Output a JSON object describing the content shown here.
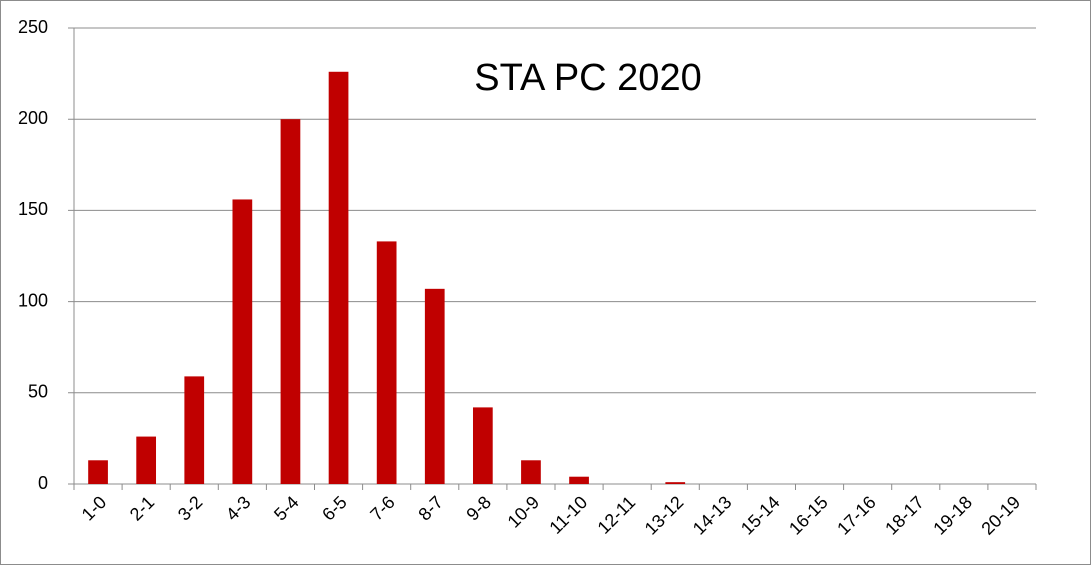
{
  "chart_data": {
    "type": "bar",
    "title": "STA PC 2020",
    "categories": [
      "1-0",
      "2-1",
      "3-2",
      "4-3",
      "5-4",
      "6-5",
      "7-6",
      "8-7",
      "9-8",
      "10-9",
      "11-10",
      "12-11",
      "13-12",
      "14-13",
      "15-14",
      "16-15",
      "17-16",
      "18-17",
      "19-18",
      "20-19"
    ],
    "values": [
      13,
      26,
      59,
      156,
      200,
      226,
      133,
      107,
      42,
      13,
      4,
      0,
      1,
      0,
      0,
      0,
      0,
      0,
      0,
      0
    ],
    "color": "#c00000",
    "ylim": [
      0,
      250
    ],
    "yticks": [
      0,
      50,
      100,
      150,
      200,
      250
    ],
    "grid": true
  }
}
